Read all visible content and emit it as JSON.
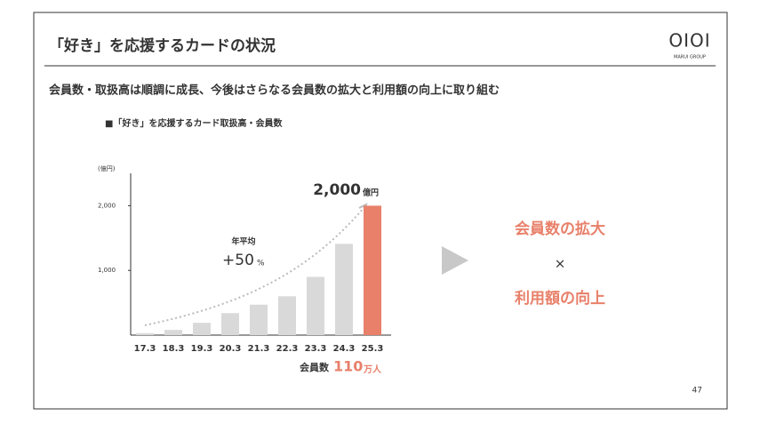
{
  "slide": {
    "title": "「好き」を応援するカードの状況",
    "logo": "OIOI",
    "logo_sub": "MARUI GROUP",
    "subtitle": "会員数・取扱高は順調に成長、今後はさらなる会員数の拡大と利用額の向上に取り組む",
    "right_line1": "会員数の拡大",
    "right_times": "×",
    "right_line2": "利用額の向上",
    "page_number": "47"
  },
  "chart_data": {
    "type": "bar",
    "title": "■「好き」を応援するカード取扱高・会員数",
    "y_unit": "(億円)",
    "categories": [
      "17.3",
      "18.3",
      "19.3",
      "20.3",
      "21.3",
      "22.3",
      "23.3",
      "24.3",
      "25.3"
    ],
    "values": [
      30,
      80,
      190,
      340,
      470,
      600,
      900,
      1410,
      2000
    ],
    "colors": [
      "#d9d9d9",
      "#d9d9d9",
      "#d9d9d9",
      "#d9d9d9",
      "#d9d9d9",
      "#d9d9d9",
      "#d9d9d9",
      "#d9d9d9",
      "#e8806a"
    ],
    "ylim": [
      0,
      2500
    ],
    "yticks": [
      {
        "value": 1000,
        "label": "1,000"
      },
      {
        "value": 2000,
        "label": "2,000"
      }
    ],
    "peak_label": "2,000",
    "peak_unit": "億円",
    "growth_caption": "年平均",
    "growth_value": "+50",
    "growth_unit": "%",
    "members_caption": "会員数",
    "members_value": "110",
    "members_unit": "万人"
  }
}
